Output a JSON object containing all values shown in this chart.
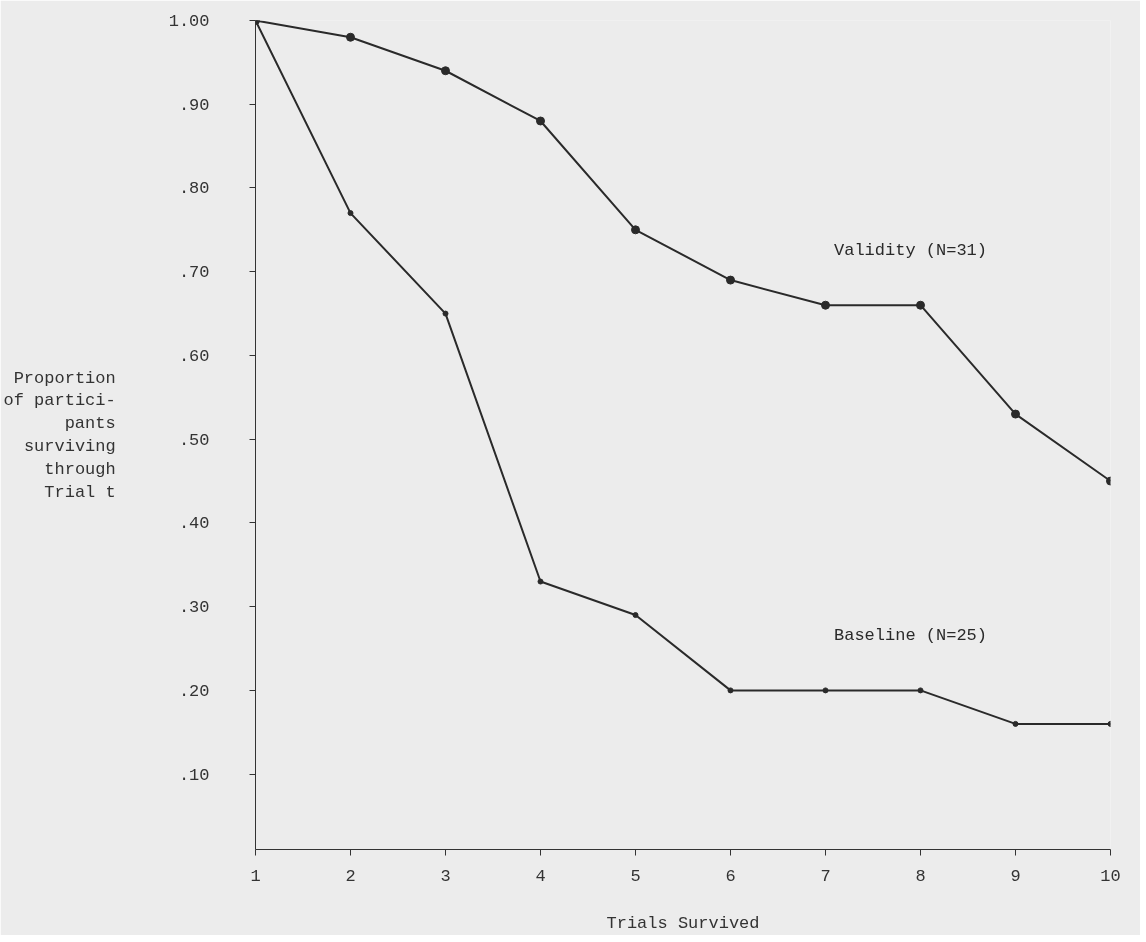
{
  "chart_data": {
    "type": "line",
    "xlabel": "Trials Survived",
    "ylabel": "Proportion\nof partici-\npants\nsurviving\nthrough\nTrial t",
    "x": [
      1,
      2,
      3,
      4,
      5,
      6,
      7,
      8,
      9,
      10
    ],
    "series": [
      {
        "name": "Validity (N=31)",
        "color": "#2a2a2a",
        "values": [
          1.0,
          0.98,
          0.94,
          0.88,
          0.75,
          0.69,
          0.66,
          0.66,
          0.53,
          0.45
        ]
      },
      {
        "name": "Baseline (N=25)",
        "color": "#2a2a2a",
        "values": [
          1.0,
          0.77,
          0.65,
          0.33,
          0.29,
          0.2,
          0.2,
          0.2,
          0.16,
          0.16
        ]
      }
    ],
    "xlim": [
      1,
      10
    ],
    "ylim": [
      0.01,
      1.0
    ],
    "xticks": [
      1,
      2,
      3,
      4,
      5,
      6,
      7,
      8,
      9,
      10
    ],
    "yticks": [
      {
        "value": 0.1,
        "label": ".10"
      },
      {
        "value": 0.2,
        "label": ".20"
      },
      {
        "value": 0.3,
        "label": ".30"
      },
      {
        "value": 0.4,
        "label": ".40"
      },
      {
        "value": 0.5,
        "label": ".50"
      },
      {
        "value": 0.6,
        "label": ".60"
      },
      {
        "value": 0.7,
        "label": ".70"
      },
      {
        "value": 0.8,
        "label": ".80"
      },
      {
        "value": 0.9,
        "label": ".90"
      },
      {
        "value": 1.0,
        "label": "1.00"
      }
    ],
    "grid": false,
    "marker": "circle",
    "line_style": "solid"
  }
}
